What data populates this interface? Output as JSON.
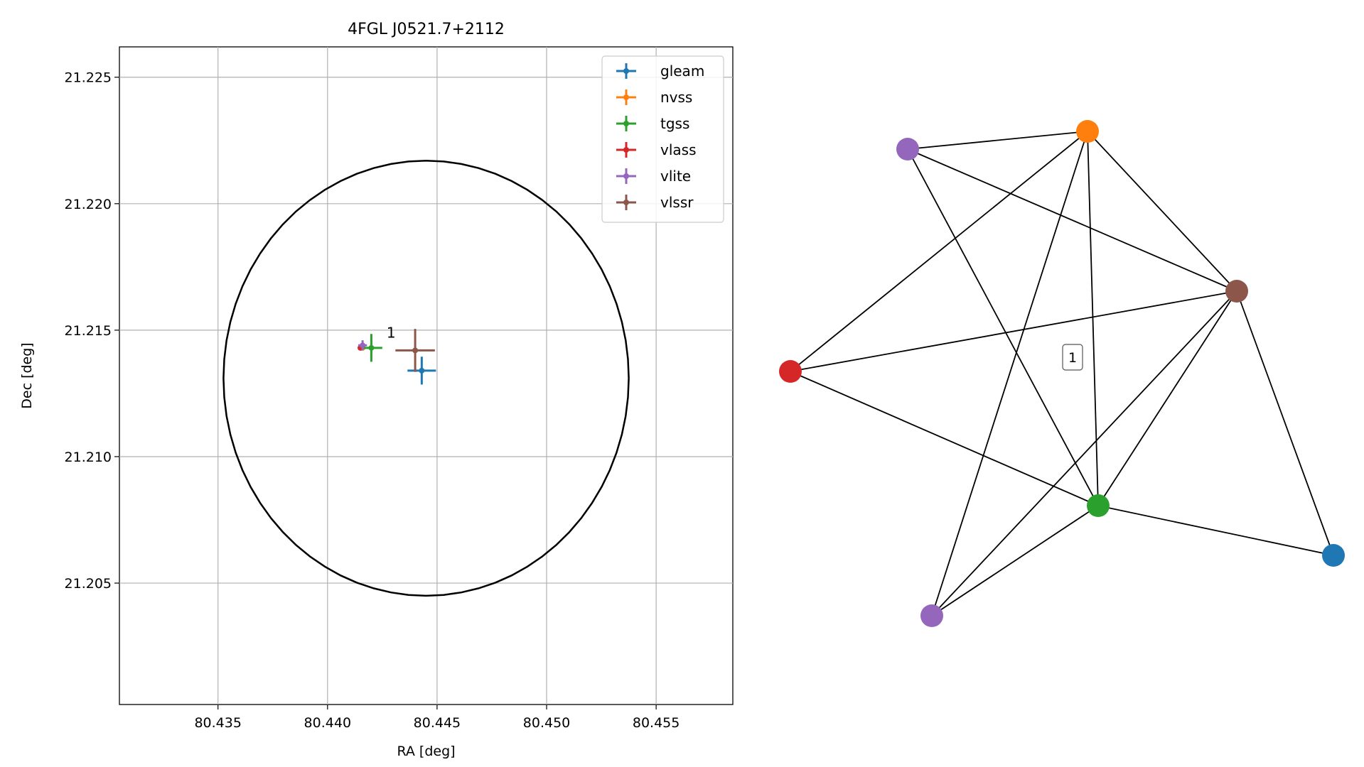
{
  "chart_data": [
    {
      "type": "scatter",
      "title": "4FGL J0521.7+2112",
      "xlabel": "RA [deg]",
      "ylabel": "Dec [deg]",
      "xlim": [
        80.4305,
        80.4585
      ],
      "ylim": [
        21.2002,
        21.2262
      ],
      "xticks": [
        "80.435",
        "80.440",
        "80.445",
        "80.450",
        "80.455"
      ],
      "yticks": [
        "21.205",
        "21.210",
        "21.215",
        "21.220",
        "21.225"
      ],
      "grid": true,
      "legend_position": "top-right",
      "series": [
        {
          "name": "gleam",
          "color": "#1f77b4",
          "x": 80.4443,
          "y": 21.2134,
          "xerr": 0.00065,
          "yerr": 0.00055
        },
        {
          "name": "nvss",
          "color": "#ff7f0e",
          "x": 80.4416,
          "y": 21.2143,
          "xerr": 0.0001,
          "yerr": 0.0001
        },
        {
          "name": "tgss",
          "color": "#2ca02c",
          "x": 80.442,
          "y": 21.2143,
          "xerr": 0.0005,
          "yerr": 0.00055
        },
        {
          "name": "vlass",
          "color": "#d62728",
          "x": 80.4415,
          "y": 21.2143,
          "xerr": 5e-05,
          "yerr": 5e-05
        },
        {
          "name": "vlite",
          "color": "#9467bd",
          "x": 80.4416,
          "y": 21.2144,
          "xerr": 0.0002,
          "yerr": 0.0002
        },
        {
          "name": "vlssr",
          "color": "#8c564b",
          "x": 80.444,
          "y": 21.2142,
          "xerr": 0.0009,
          "yerr": 0.00085
        }
      ],
      "circle": {
        "center_x": 80.4445,
        "center_y": 21.2131,
        "radius_ra": 0.00925,
        "radius_dec": 0.0086
      },
      "annotations": [
        {
          "text": "1",
          "x": 80.4429,
          "y": 21.2147
        }
      ]
    },
    {
      "type": "network",
      "nodes": [
        {
          "id": "vlite_top",
          "color": "#9467bd"
        },
        {
          "id": "nvss",
          "color": "#ff7f0e"
        },
        {
          "id": "vlssr",
          "color": "#8c564b"
        },
        {
          "id": "vlass",
          "color": "#d62728"
        },
        {
          "id": "tgss",
          "color": "#2ca02c"
        },
        {
          "id": "gleam",
          "color": "#1f77b4"
        },
        {
          "id": "vlite_bottom",
          "color": "#9467bd"
        }
      ],
      "edges": [
        [
          "vlite_top",
          "nvss"
        ],
        [
          "vlite_top",
          "vlssr"
        ],
        [
          "vlite_top",
          "tgss"
        ],
        [
          "nvss",
          "vlass"
        ],
        [
          "nvss",
          "vlssr"
        ],
        [
          "nvss",
          "tgss"
        ],
        [
          "nvss",
          "vlite_bottom"
        ],
        [
          "vlssr",
          "vlass"
        ],
        [
          "vlssr",
          "tgss"
        ],
        [
          "vlssr",
          "gleam"
        ],
        [
          "vlssr",
          "vlite_bottom"
        ],
        [
          "vlass",
          "tgss"
        ],
        [
          "tgss",
          "gleam"
        ],
        [
          "tgss",
          "vlite_bottom"
        ]
      ],
      "label": "1"
    }
  ]
}
